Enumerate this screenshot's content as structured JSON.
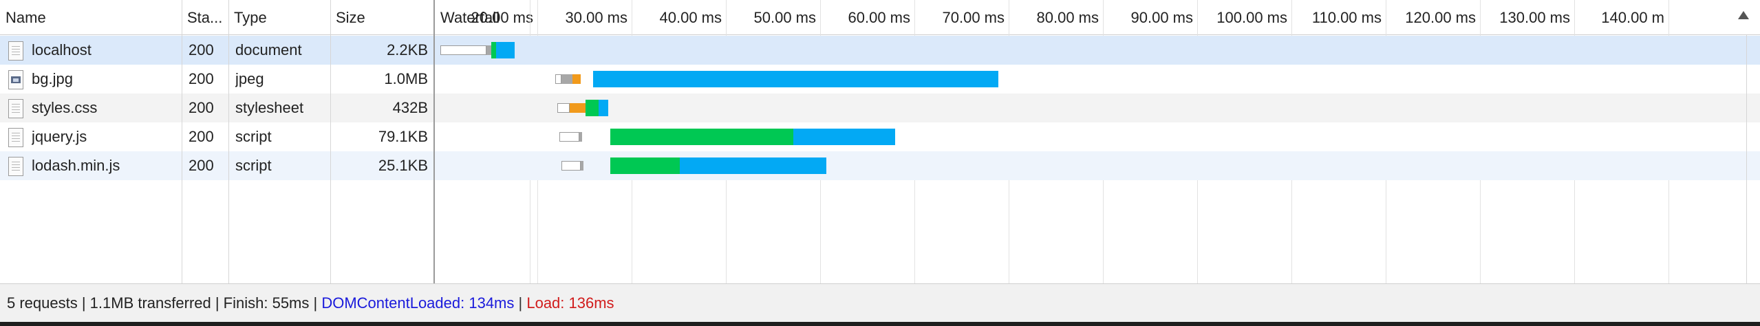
{
  "header": {
    "name_label": "Name",
    "status_label": "Sta...",
    "type_label": "Type",
    "size_label": "Size",
    "waterfall_label": "Waterfall"
  },
  "timeline": {
    "ticks": [
      "20.00 ms",
      "30.00 ms",
      "40.00 ms",
      "50.00 ms",
      "60.00 ms",
      "70.00 ms",
      "80.00 ms",
      "90.00 ms",
      "100.00 ms",
      "110.00 ms",
      "120.00 ms",
      "130.00 ms",
      "140.00 m"
    ]
  },
  "requests": [
    {
      "name": "localhost",
      "status": "200",
      "type": "document",
      "size": "2.2KB",
      "icon": "document-icon",
      "selected": true,
      "bars": [
        {
          "kind": "blocked",
          "start": 0.6,
          "end": 5.5
        },
        {
          "kind": "stalled",
          "start": 5.5,
          "end": 6.0
        },
        {
          "kind": "green",
          "start": 6.0,
          "end": 6.5
        },
        {
          "kind": "blue",
          "start": 6.5,
          "end": 8.5
        }
      ]
    },
    {
      "name": "bg.jpg",
      "status": "200",
      "type": "jpeg",
      "size": "1.0MB",
      "icon": "image-icon",
      "selected": false,
      "bars": [
        {
          "kind": "blocked",
          "start": 12.8,
          "end": 13.4
        },
        {
          "kind": "stalled",
          "start": 13.4,
          "end": 14.6
        },
        {
          "kind": "orange",
          "start": 14.6,
          "end": 15.5
        },
        {
          "kind": "blue",
          "start": 16.8,
          "end": 59.8
        }
      ]
    },
    {
      "name": "styles.css",
      "status": "200",
      "type": "stylesheet",
      "size": "432B",
      "icon": "document-icon",
      "selected": false,
      "bars": [
        {
          "kind": "blocked",
          "start": 13.0,
          "end": 14.3
        },
        {
          "kind": "orange",
          "start": 14.3,
          "end": 16.0
        },
        {
          "kind": "green",
          "start": 16.0,
          "end": 17.4
        },
        {
          "kind": "blue",
          "start": 17.4,
          "end": 18.4
        }
      ]
    },
    {
      "name": "jquery.js",
      "status": "200",
      "type": "script",
      "size": "79.1KB",
      "icon": "document-icon",
      "selected": false,
      "bars": [
        {
          "kind": "blocked",
          "start": 13.2,
          "end": 15.3
        },
        {
          "kind": "stalled",
          "start": 15.3,
          "end": 15.6
        },
        {
          "kind": "green",
          "start": 18.6,
          "end": 38.0
        },
        {
          "kind": "blue",
          "start": 38.0,
          "end": 48.8
        }
      ]
    },
    {
      "name": "lodash.min.js",
      "status": "200",
      "type": "script",
      "size": "25.1KB",
      "icon": "document-icon",
      "selected": false,
      "bars": [
        {
          "kind": "blocked",
          "start": 13.4,
          "end": 15.5
        },
        {
          "kind": "stalled",
          "start": 15.5,
          "end": 15.8
        },
        {
          "kind": "green",
          "start": 18.6,
          "end": 26.0
        },
        {
          "kind": "blue",
          "start": 26.0,
          "end": 41.5
        }
      ]
    }
  ],
  "status_bar": {
    "summary": "5 requests | 1.1MB transferred | Finish: 55ms | ",
    "dom_content_loaded": "DOMContentLoaded: 134ms",
    "divider": " | ",
    "load": "Load: 136ms"
  },
  "colors": {
    "selected_row": "#dbe9fa",
    "waiting_green": "#00c853",
    "download_blue": "#03a9f4",
    "queue_orange": "#f19a1b",
    "dcl_blue": "#1a1adb",
    "load_red": "#d11c1c"
  }
}
